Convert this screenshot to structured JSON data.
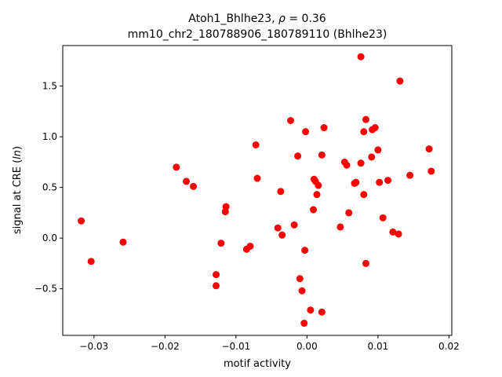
{
  "chart_data": {
    "type": "scatter",
    "title_line1": "Atoh1_Bhlhe23, ",
    "title_rho_symbol": "ρ",
    "title_rho_value": " = 0.36",
    "title_line2": "mm10_chr2_180788906_180789110 (Bhlhe23)",
    "xlabel": "motif activity",
    "ylabel_prefix": "signal at CRE (",
    "ylabel_italic": "ln",
    "ylabel_suffix": ")",
    "xlim": [
      -0.0344,
      0.0204
    ],
    "ylim": [
      -0.96,
      1.9
    ],
    "xticks": [
      -0.03,
      -0.02,
      -0.01,
      0.0,
      0.01,
      0.02
    ],
    "xtick_labels": [
      "−0.03",
      "−0.02",
      "−0.01",
      "0.00",
      "0.01",
      "0.02"
    ],
    "yticks": [
      -0.5,
      0.0,
      0.5,
      1.0,
      1.5
    ],
    "ytick_labels": [
      "−0.5",
      "0.0",
      "0.5",
      "1.0",
      "1.5"
    ],
    "marker_color": "#ff0000",
    "grid": false,
    "points": [
      {
        "x": -0.0318,
        "y": 0.17
      },
      {
        "x": -0.0304,
        "y": -0.23
      },
      {
        "x": -0.0259,
        "y": -0.04
      },
      {
        "x": -0.0184,
        "y": 0.7
      },
      {
        "x": -0.017,
        "y": 0.56
      },
      {
        "x": -0.016,
        "y": 0.51
      },
      {
        "x": -0.0128,
        "y": -0.36
      },
      {
        "x": -0.0128,
        "y": -0.47
      },
      {
        "x": -0.0121,
        "y": -0.05
      },
      {
        "x": -0.0114,
        "y": 0.31
      },
      {
        "x": -0.0115,
        "y": 0.26
      },
      {
        "x": -0.0085,
        "y": -0.11
      },
      {
        "x": -0.008,
        "y": -0.08
      },
      {
        "x": -0.0072,
        "y": 0.92
      },
      {
        "x": -0.007,
        "y": 0.59
      },
      {
        "x": -0.0041,
        "y": 0.1
      },
      {
        "x": -0.0037,
        "y": 0.46
      },
      {
        "x": -0.0035,
        "y": 0.03
      },
      {
        "x": -0.0023,
        "y": 1.16
      },
      {
        "x": -0.0018,
        "y": 0.13
      },
      {
        "x": -0.0013,
        "y": 0.81
      },
      {
        "x": -0.001,
        "y": -0.4
      },
      {
        "x": -0.0007,
        "y": -0.52
      },
      {
        "x": -0.0004,
        "y": -0.84
      },
      {
        "x": -0.0003,
        "y": -0.12
      },
      {
        "x": -0.0002,
        "y": 1.05
      },
      {
        "x": 0.0005,
        "y": -0.71
      },
      {
        "x": 0.0009,
        "y": 0.28
      },
      {
        "x": 0.001,
        "y": 0.58
      },
      {
        "x": 0.0012,
        "y": 0.56
      },
      {
        "x": 0.0014,
        "y": 0.43
      },
      {
        "x": 0.0016,
        "y": 0.52
      },
      {
        "x": 0.0021,
        "y": 0.82
      },
      {
        "x": 0.0021,
        "y": -0.73
      },
      {
        "x": 0.0024,
        "y": 1.09
      },
      {
        "x": 0.0047,
        "y": 0.11
      },
      {
        "x": 0.0053,
        "y": 0.75
      },
      {
        "x": 0.0056,
        "y": 0.72
      },
      {
        "x": 0.0059,
        "y": 0.25
      },
      {
        "x": 0.0067,
        "y": 0.54
      },
      {
        "x": 0.0069,
        "y": 0.55
      },
      {
        "x": 0.0076,
        "y": 1.79
      },
      {
        "x": 0.0076,
        "y": 0.74
      },
      {
        "x": 0.008,
        "y": 1.05
      },
      {
        "x": 0.008,
        "y": 0.43
      },
      {
        "x": 0.0083,
        "y": 1.17
      },
      {
        "x": 0.0083,
        "y": -0.25
      },
      {
        "x": 0.0091,
        "y": 0.8
      },
      {
        "x": 0.0092,
        "y": 1.07
      },
      {
        "x": 0.0096,
        "y": 1.09
      },
      {
        "x": 0.01,
        "y": 0.87
      },
      {
        "x": 0.0102,
        "y": 0.55
      },
      {
        "x": 0.0107,
        "y": 0.2
      },
      {
        "x": 0.0114,
        "y": 0.57
      },
      {
        "x": 0.0121,
        "y": 0.06
      },
      {
        "x": 0.0129,
        "y": 0.04
      },
      {
        "x": 0.0131,
        "y": 1.55
      },
      {
        "x": 0.0145,
        "y": 0.62
      },
      {
        "x": 0.0172,
        "y": 0.88
      },
      {
        "x": 0.0175,
        "y": 0.66
      }
    ]
  }
}
